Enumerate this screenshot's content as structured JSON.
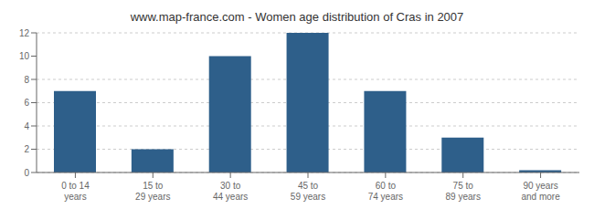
{
  "chart_data": {
    "type": "bar",
    "title": "www.map-france.com - Women age distribution of Cras in 2007",
    "categories": [
      "0 to 14 years",
      "15 to 29 years",
      "30 to 44 years",
      "45 to 59 years",
      "60 to 74 years",
      "75 to 89 years",
      "90 years and more"
    ],
    "values": [
      7,
      2,
      10,
      12,
      7,
      3,
      0.2
    ],
    "color": "#2e5f8a",
    "ylim": [
      0,
      12
    ],
    "yticks": [
      0,
      2,
      4,
      6,
      8,
      10,
      12
    ],
    "grid": true
  }
}
